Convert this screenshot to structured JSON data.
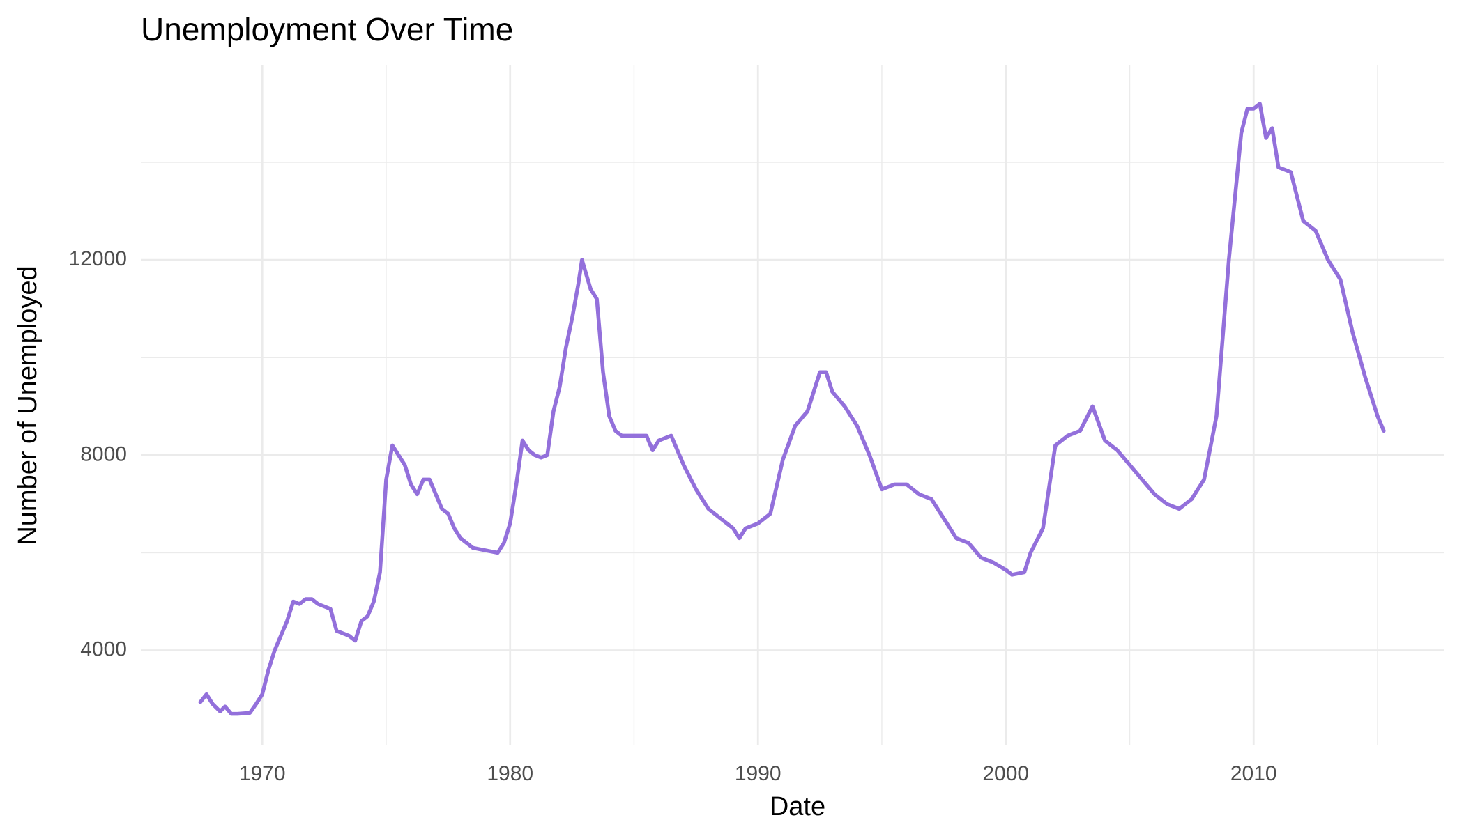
{
  "chart_data": {
    "type": "line",
    "title": "Unemployment Over Time",
    "x_label": "Date",
    "y_label": "Number of Unemployed",
    "x": [
      1967.5,
      1967.75,
      1968.0,
      1968.3,
      1968.5,
      1968.75,
      1969.0,
      1969.5,
      1969.75,
      1970.0,
      1970.25,
      1970.5,
      1970.75,
      1971.0,
      1971.25,
      1971.5,
      1971.75,
      1972.0,
      1972.25,
      1972.5,
      1972.75,
      1973.0,
      1973.25,
      1973.5,
      1973.75,
      1974.0,
      1974.25,
      1974.5,
      1974.75,
      1975.0,
      1975.25,
      1975.5,
      1975.75,
      1976.0,
      1976.25,
      1976.5,
      1976.75,
      1977.0,
      1977.25,
      1977.5,
      1977.75,
      1978.0,
      1978.5,
      1979.0,
      1979.5,
      1979.75,
      1980.0,
      1980.25,
      1980.5,
      1980.75,
      1981.0,
      1981.25,
      1981.5,
      1981.75,
      1982.0,
      1982.25,
      1982.5,
      1982.75,
      1982.9,
      1983.25,
      1983.5,
      1983.75,
      1984.0,
      1984.25,
      1984.5,
      1985.0,
      1985.5,
      1985.75,
      1986.0,
      1986.5,
      1987.0,
      1987.5,
      1988.0,
      1988.5,
      1989.0,
      1989.25,
      1989.5,
      1990.0,
      1990.5,
      1991.0,
      1991.5,
      1992.0,
      1992.5,
      1992.75,
      1993.0,
      1993.5,
      1994.0,
      1994.5,
      1995.0,
      1995.5,
      1996.0,
      1996.5,
      1997.0,
      1997.5,
      1998.0,
      1998.5,
      1999.0,
      1999.5,
      2000.0,
      2000.25,
      2000.75,
      2001.0,
      2001.5,
      2002.0,
      2002.5,
      2003.0,
      2003.5,
      2004.0,
      2004.5,
      2005.0,
      2005.5,
      2006.0,
      2006.5,
      2007.0,
      2007.5,
      2008.0,
      2008.5,
      2009.0,
      2009.5,
      2009.75,
      2010.0,
      2010.25,
      2010.5,
      2010.75,
      2011.0,
      2011.5,
      2012.0,
      2012.5,
      2013.0,
      2013.5,
      2014.0,
      2014.5,
      2015.0,
      2015.25
    ],
    "values": [
      2940,
      3100,
      2900,
      2750,
      2850,
      2700,
      2700,
      2720,
      2900,
      3100,
      3600,
      4000,
      4300,
      4600,
      5000,
      4950,
      5050,
      5050,
      4950,
      4900,
      4850,
      4400,
      4350,
      4300,
      4200,
      4600,
      4700,
      5000,
      5600,
      7500,
      8200,
      8000,
      7800,
      7400,
      7200,
      7500,
      7500,
      7200,
      6900,
      6800,
      6500,
      6300,
      6100,
      6050,
      6000,
      6200,
      6600,
      7400,
      8300,
      8100,
      8000,
      7950,
      8000,
      8900,
      9400,
      10200,
      10800,
      11500,
      12000,
      11400,
      11200,
      9700,
      8800,
      8500,
      8400,
      8400,
      8400,
      8100,
      8300,
      8400,
      7800,
      7300,
      6900,
      6700,
      6500,
      6300,
      6500,
      6600,
      6800,
      7900,
      8600,
      8900,
      9700,
      9700,
      9300,
      9000,
      8600,
      8000,
      7300,
      7400,
      7400,
      7200,
      7100,
      6700,
      6300,
      6200,
      5900,
      5800,
      5650,
      5550,
      5600,
      6000,
      6500,
      8200,
      8400,
      8500,
      9000,
      8300,
      8100,
      7800,
      7500,
      7200,
      7000,
      6900,
      7100,
      7500,
      8800,
      12000,
      14600,
      15100,
      15100,
      15200,
      14500,
      14700,
      13900,
      13800,
      12800,
      12600,
      12000,
      11600,
      10500,
      9600,
      8800,
      8500
    ],
    "color": "#9370DB",
    "xlim": [
      1965.1,
      2017.7
    ],
    "xticks": [
      1970,
      1980,
      1990,
      2000,
      2010
    ],
    "x_minor_ticks": [
      1975,
      1985,
      1995,
      2005,
      2015
    ],
    "ylim": [
      2052,
      15985
    ],
    "yticks": [
      4000,
      8000,
      12000
    ],
    "y_minor_ticks": [
      6000,
      10000,
      14000
    ],
    "grid": true
  }
}
